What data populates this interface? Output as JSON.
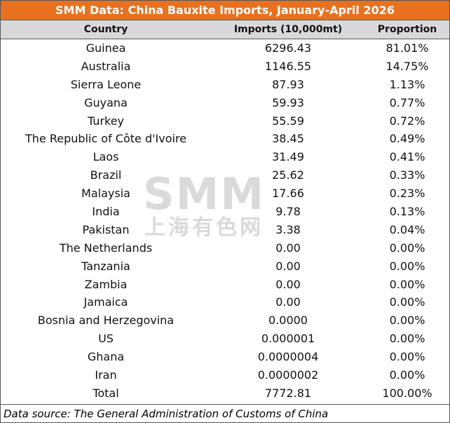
{
  "title": "SMM Data: China Bauxite Imports, January-April 2026",
  "table": {
    "header": [
      "Country",
      "Imports (10,000mt)",
      "Proportion"
    ],
    "rows": [
      [
        "Guinea",
        "6296.43",
        "81.01%"
      ],
      [
        "Australia",
        "1146.55",
        "14.75%"
      ],
      [
        "Sierra Leone",
        "87.93",
        "1.13%"
      ],
      [
        "Guyana",
        "59.93",
        "0.77%"
      ],
      [
        "Turkey",
        "55.59",
        "0.72%"
      ],
      [
        "The Republic of Côte d'Ivoire",
        "38.45",
        "0.49%"
      ],
      [
        "Laos",
        "31.49",
        "0.41%"
      ],
      [
        "Brazil",
        "25.62",
        "0.33%"
      ],
      [
        "Malaysia",
        "17.66",
        "0.23%"
      ],
      [
        "India",
        "9.78",
        "0.13%"
      ],
      [
        "Pakistan",
        "3.38",
        "0.04%"
      ],
      [
        "The Netherlands",
        "0.00",
        "0.00%"
      ],
      [
        "Tanzania",
        "0.00",
        "0.00%"
      ],
      [
        "Zambia",
        "0.00",
        "0.00%"
      ],
      [
        "Jamaica",
        "0.00",
        "0.00%"
      ],
      [
        "Bosnia and Herzegovina",
        "0.0000",
        "0.00%"
      ],
      [
        "US",
        "0.000001",
        "0.00%"
      ],
      [
        "Ghana",
        "0.0000004",
        "0.00%"
      ],
      [
        "Iran",
        "0.0000002",
        "0.00%"
      ],
      [
        "Total",
        "7772.81",
        "100.00%"
      ]
    ]
  },
  "footer": "Data source:  The General Administration of Customs of China",
  "watermark": {
    "logo": "SMM",
    "name": "上海有色网"
  }
}
